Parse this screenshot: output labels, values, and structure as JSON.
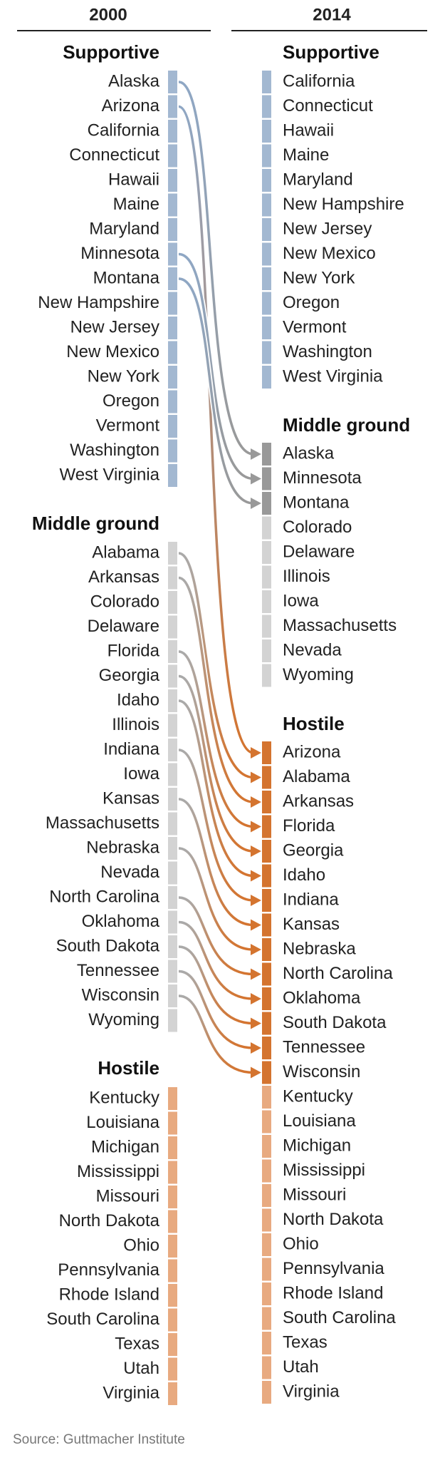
{
  "columns": [
    {
      "year": "2000",
      "groups": [
        {
          "title": "Supportive",
          "items": [
            "Alaska",
            "Arizona",
            "California",
            "Connecticut",
            "Hawaii",
            "Maine",
            "Maryland",
            "Minnesota",
            "Montana",
            "New Hampshire",
            "New Jersey",
            "New Mexico",
            "New York",
            "Oregon",
            "Vermont",
            "Washington",
            "West Virginia"
          ]
        },
        {
          "title": "Middle ground",
          "items": [
            "Alabama",
            "Arkansas",
            "Colorado",
            "Delaware",
            "Florida",
            "Georgia",
            "Idaho",
            "Illinois",
            "Indiana",
            "Iowa",
            "Kansas",
            "Massachusetts",
            "Nebraska",
            "Nevada",
            "North Carolina",
            "Oklahoma",
            "South Dakota",
            "Tennessee",
            "Wisconsin",
            "Wyoming"
          ]
        },
        {
          "title": "Hostile",
          "items": [
            "Kentucky",
            "Louisiana",
            "Michigan",
            "Mississippi",
            "Missouri",
            "North Dakota",
            "Ohio",
            "Pennsylvania",
            "Rhode Island",
            "South Carolina",
            "Texas",
            "Utah",
            "Virginia"
          ]
        }
      ]
    },
    {
      "year": "2014",
      "groups": [
        {
          "title": "Supportive",
          "items": [
            "California",
            "Connecticut",
            "Hawaii",
            "Maine",
            "Maryland",
            "New Hampshire",
            "New Jersey",
            "New Mexico",
            "New York",
            "Oregon",
            "Vermont",
            "Washington",
            "West Virginia"
          ]
        },
        {
          "title": "Middle ground",
          "items": [
            "Alaska",
            "Minnesota",
            "Montana",
            "Colorado",
            "Delaware",
            "Illinois",
            "Iowa",
            "Massachusetts",
            "Nevada",
            "Wyoming"
          ]
        },
        {
          "title": "Hostile",
          "items": [
            "Arizona",
            "Alabama",
            "Arkansas",
            "Florida",
            "Georgia",
            "Idaho",
            "Indiana",
            "Kansas",
            "Nebraska",
            "North Carolina",
            "Oklahoma",
            "South Dakota",
            "Tennessee",
            "Wisconsin",
            "Kentucky",
            "Louisiana",
            "Michigan",
            "Mississippi",
            "Missouri",
            "North Dakota",
            "Ohio",
            "Pennsylvania",
            "Rhode Island",
            "South Carolina",
            "Texas",
            "Utah",
            "Virginia"
          ]
        }
      ]
    }
  ],
  "source": "Source: Guttmacher Institute"
}
